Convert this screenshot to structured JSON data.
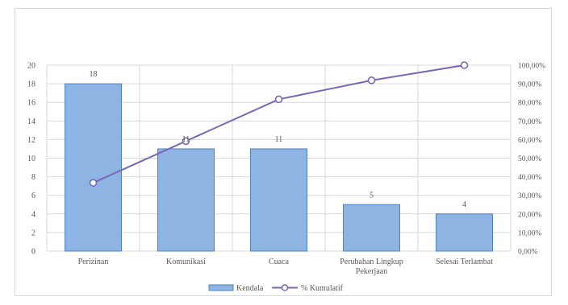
{
  "chart_data": {
    "type": "bar+line",
    "categories": [
      "Perizinan",
      "Komunikasi",
      "Cuaca",
      "Perubahan Lingkup Pekerjaan",
      "Selesai Terlambat"
    ],
    "series": [
      {
        "name": "Kendala",
        "type": "bar",
        "axis": "left",
        "values": [
          18,
          11,
          11,
          5,
          4
        ],
        "data_labels": [
          "18",
          "11",
          "11",
          "5",
          "4"
        ]
      },
      {
        "name": "% Kumulatif",
        "type": "line",
        "axis": "right",
        "values": [
          36.73,
          59.18,
          81.63,
          91.84,
          100.0
        ]
      }
    ],
    "y_left": {
      "ylim": [
        0,
        20
      ],
      "ticks": [
        "0",
        "2",
        "4",
        "6",
        "8",
        "10",
        "12",
        "14",
        "16",
        "18",
        "20"
      ]
    },
    "y_right": {
      "ylim": [
        0,
        100
      ],
      "ticks": [
        "0,00%",
        "10,00%",
        "20,00%",
        "30,00%",
        "40,00%",
        "50,00%",
        "60,00%",
        "70,00%",
        "80,00%",
        "90,00%",
        "100,00%"
      ]
    },
    "x_tick_labels": [
      [
        "Perizinan"
      ],
      [
        "Komunikasi"
      ],
      [
        "Cuaca"
      ],
      [
        "Perubahan Lingkup",
        "Pekerjaan"
      ],
      [
        "Selesai  Terlambat"
      ]
    ],
    "grid": true,
    "legend": {
      "placement": "bottom",
      "entries": [
        "Kendala",
        "% Kumulatif"
      ]
    },
    "title": "",
    "xlabel": "",
    "ylabel": "",
    "colors": {
      "bar_fill": "#8eb4e3",
      "bar_stroke": "#4f81bd",
      "line": "#7a67b8",
      "marker_fill": "#ffffff",
      "grid": "#d9d9d9",
      "text": "#595959"
    }
  }
}
